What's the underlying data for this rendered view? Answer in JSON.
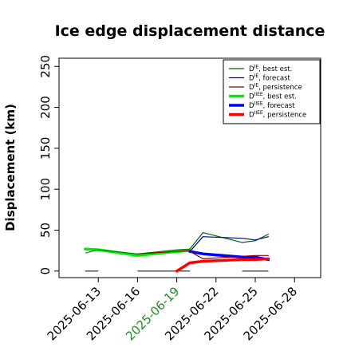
{
  "chart_data": {
    "type": "line",
    "title": "Ice edge displacement distance",
    "ylabel": "Displacement (km)",
    "xlabel": "",
    "ylim": [
      -8,
      260
    ],
    "xlim": [
      "2025-06-10",
      "2025-06-30"
    ],
    "yticks": [
      0,
      50,
      100,
      150,
      200,
      250
    ],
    "xticks": [
      {
        "label": "2025-06-13",
        "date": "2025-06-13",
        "color": "#000000"
      },
      {
        "label": "2025-06-16",
        "date": "2025-06-16",
        "color": "#000000"
      },
      {
        "label": "2025-06-19",
        "date": "2025-06-19",
        "color": "#228b22"
      },
      {
        "label": "2025-06-22",
        "date": "2025-06-22",
        "color": "#000000"
      },
      {
        "label": "2025-06-25",
        "date": "2025-06-25",
        "color": "#000000"
      },
      {
        "label": "2025-06-28",
        "date": "2025-06-28",
        "color": "#000000"
      }
    ],
    "legend_position": "top-right",
    "series": [
      {
        "name": "D^IE, best est.",
        "sup": "IE",
        "label": ", best est.",
        "color": "#006400",
        "width": 1.2,
        "points": [
          [
            "2025-06-20",
            27
          ],
          [
            "2025-06-21",
            47
          ],
          [
            "2025-06-24",
            35
          ],
          [
            "2025-06-25",
            37
          ],
          [
            "2025-06-26",
            45
          ]
        ]
      },
      {
        "name": "D^IE, forecast",
        "sup": "IE",
        "label": ", forecast",
        "color": "#00008b",
        "width": 1.2,
        "points": [
          [
            "2025-06-20",
            24
          ],
          [
            "2025-06-21",
            42
          ],
          [
            "2025-06-24",
            40
          ],
          [
            "2025-06-25",
            38
          ],
          [
            "2025-06-26",
            42
          ]
        ]
      },
      {
        "name": "D^IE, persistence",
        "sup": "IE",
        "label": ", persistence",
        "color": "#8b0000",
        "width": 1.2,
        "points": [
          [
            "2025-06-20",
            24
          ],
          [
            "2025-06-21",
            15
          ],
          [
            "2025-06-25",
            19
          ],
          [
            "2025-06-26",
            19
          ]
        ]
      },
      {
        "name": "D^IIEE, best est.",
        "sup": "IIEE",
        "label": ", best est.",
        "color": "#00ee00",
        "width": 3.5,
        "points": [
          [
            "2025-06-12",
            27
          ],
          [
            "2025-06-13",
            26
          ],
          [
            "2025-06-16",
            19
          ],
          [
            "2025-06-19",
            24
          ],
          [
            "2025-06-20",
            25
          ]
        ]
      },
      {
        "name": "D^IIEE, forecast",
        "sup": "IIEE",
        "label": ", forecast",
        "color": "#0000ff",
        "width": 3.5,
        "points": [
          [
            "2025-06-20",
            24
          ],
          [
            "2025-06-21",
            21
          ],
          [
            "2025-06-24",
            17
          ],
          [
            "2025-06-25",
            17
          ],
          [
            "2025-06-26",
            14
          ]
        ]
      },
      {
        "name": "D^IIEE, persistence",
        "sup": "IIEE",
        "label": ", persistence",
        "color": "#ff0000",
        "width": 3.5,
        "points": [
          [
            "2025-06-19",
            0
          ],
          [
            "2025-06-20",
            10
          ],
          [
            "2025-06-21",
            12
          ],
          [
            "2025-06-24",
            14
          ],
          [
            "2025-06-25",
            14
          ],
          [
            "2025-06-26",
            15
          ]
        ]
      }
    ],
    "thin_lines": [
      {
        "color": "#006400",
        "points": [
          [
            "2025-06-12",
            22
          ],
          [
            "2025-06-13",
            26
          ],
          [
            "2025-06-16",
            21
          ],
          [
            "2025-06-19",
            26
          ],
          [
            "2025-06-20",
            27
          ]
        ]
      },
      {
        "color": "#8b0000",
        "points": [
          [
            "2025-06-16",
            21
          ],
          [
            "2025-06-19",
            24
          ],
          [
            "2025-06-20",
            25
          ]
        ]
      }
    ],
    "baselines": [
      {
        "start": "2025-06-12",
        "end": "2025-06-13"
      },
      {
        "start": "2025-06-16",
        "end": "2025-06-20"
      },
      {
        "start": "2025-06-24",
        "end": "2025-06-26"
      }
    ]
  }
}
